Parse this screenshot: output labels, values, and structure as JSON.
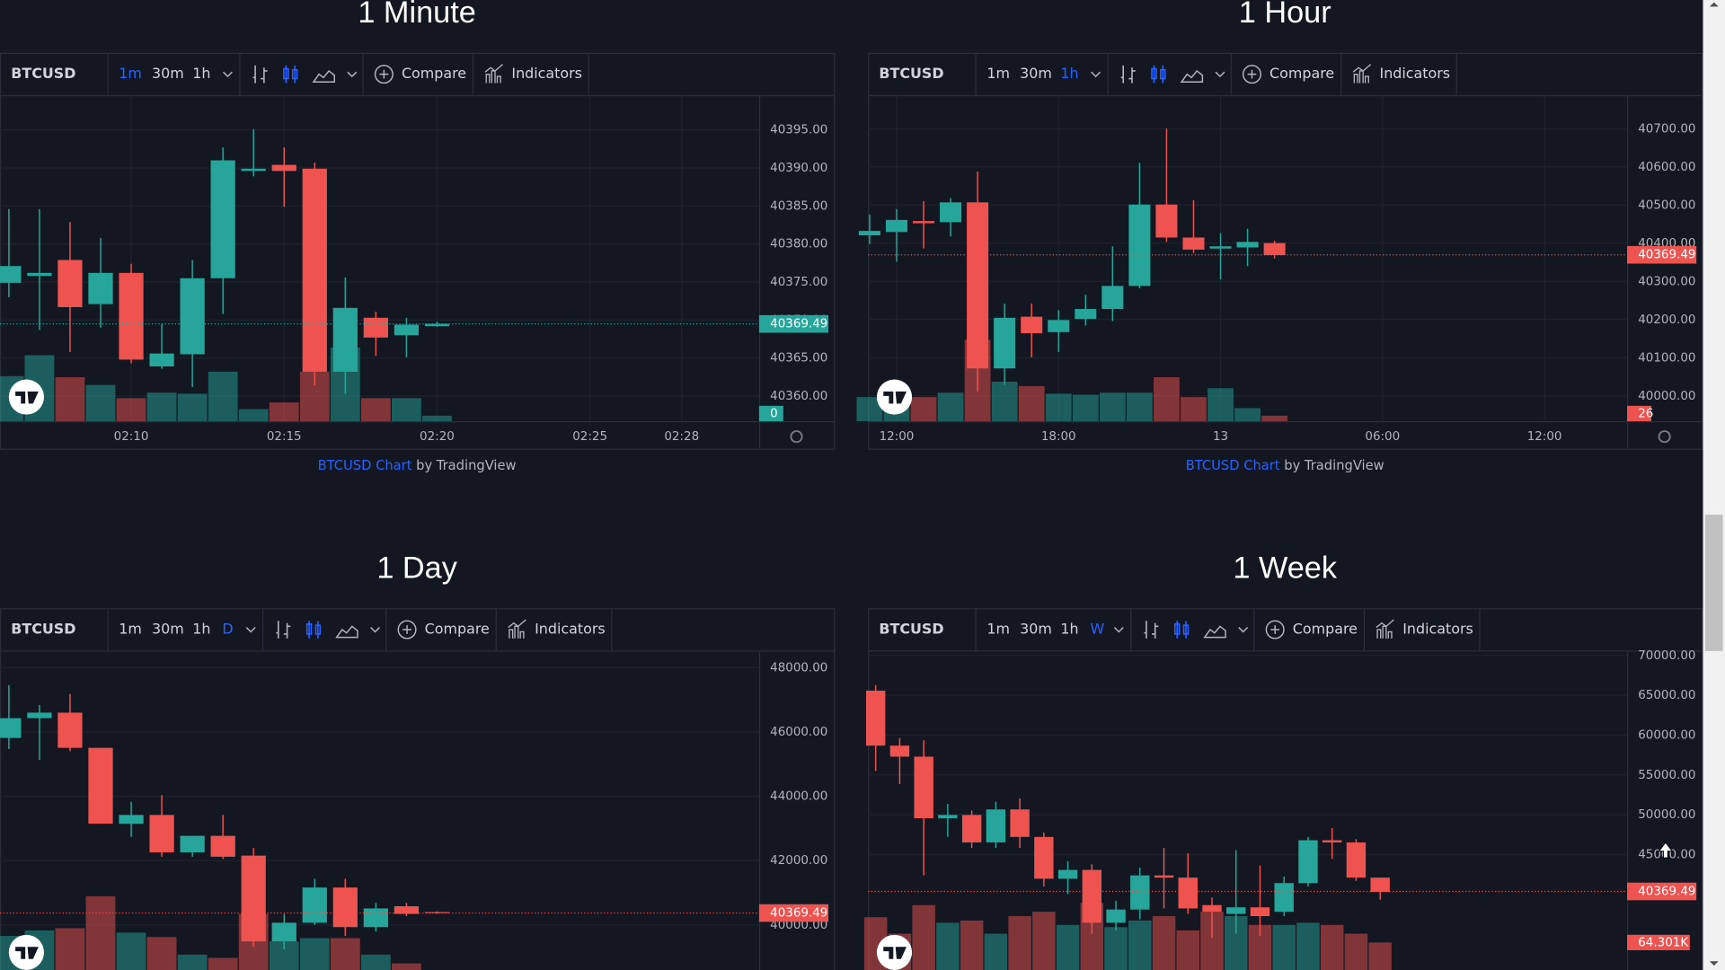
{
  "chart_data": [
    {
      "type": "candlestick",
      "title": "1 Minute",
      "toolbar": {
        "symbol": "BTCUSD",
        "intervals": [
          "1m",
          "30m",
          "1h"
        ],
        "active": 0,
        "compare": "Compare",
        "indicators": "Indicators"
      },
      "credit": {
        "link": "BTCUSD Chart",
        "text": "by TradingView"
      },
      "up_color": "#26a69a",
      "down_color": "#ef5350",
      "open": [
        40374.9,
        40375.8,
        40377.9,
        40372.1,
        40376.2,
        40363.9,
        40365.5,
        40375.5,
        40389.6,
        40390.4,
        40389.9,
        40363.2,
        40370.3,
        40368.0,
        40369.2
      ],
      "high": [
        40384.6,
        40384.6,
        40382.9,
        40380.8,
        40377.4,
        40369.5,
        40377.9,
        40392.7,
        40395.1,
        40392.7,
        40390.7,
        40375.6,
        40371.1,
        40370.3,
        40369.8
      ],
      "low": [
        40373.0,
        40368.7,
        40365.8,
        40369.0,
        40364.3,
        40363.6,
        40361.2,
        40370.8,
        40388.9,
        40384.9,
        40361.4,
        40360.3,
        40365.3,
        40365.1,
        40369.1
      ],
      "close": [
        40377.1,
        40376.2,
        40371.7,
        40376.2,
        40364.8,
        40365.6,
        40375.5,
        40391.0,
        40389.9,
        40389.6,
        40363.2,
        40371.6,
        40367.7,
        40369.4,
        40369.5
      ],
      "volume": [
        41,
        60,
        40,
        33,
        21,
        26,
        25,
        45,
        11,
        17,
        45,
        67,
        21,
        21,
        5
      ],
      "volume_lim": [
        0,
        296
      ],
      "ylim": [
        40356.7,
        40399.5
      ],
      "yticks": [
        {
          "value": 40360,
          "label": "40360.00"
        },
        {
          "value": 40365,
          "label": "40365.00"
        },
        {
          "value": 40370,
          "label": "40370.00"
        },
        {
          "value": 40375,
          "label": "40375.00"
        },
        {
          "value": 40380,
          "label": "40380.00"
        },
        {
          "value": 40385,
          "label": "40385.00"
        },
        {
          "value": 40390,
          "label": "40390.00"
        },
        {
          "value": 40395,
          "label": "40395.00"
        }
      ],
      "xlim": [
        -0.29,
        24.53
      ],
      "xticks": [
        {
          "value": 4,
          "label": "02:10"
        },
        {
          "value": 9,
          "label": "02:15"
        },
        {
          "value": 14,
          "label": "02:20"
        },
        {
          "value": 19,
          "label": "02:25"
        },
        {
          "value": 22,
          "label": "02:28"
        }
      ],
      "last_price": 40369.49,
      "last_price_color": "#26a69a",
      "last_volume": 0
    },
    {
      "type": "candlestick",
      "title": "1 Hour",
      "toolbar": {
        "symbol": "BTCUSD",
        "intervals": [
          "1m",
          "30m",
          "1h"
        ],
        "active": 2,
        "compare": "Compare",
        "indicators": "Indicators"
      },
      "credit": {
        "link": "BTCUSD Chart",
        "text": "by TradingView"
      },
      "up_color": "#26a69a",
      "down_color": "#ef5350",
      "open": [
        40420.5,
        40429.2,
        40458.0,
        40455.1,
        40507.0,
        40071.9,
        40207.4,
        40167.0,
        40201.6,
        40227.5,
        40288.0,
        40501.2,
        40414.8,
        40385.9,
        40388.9,
        40400.4
      ],
      "high": [
        40475.3,
        40489.7,
        40509.9,
        40518.5,
        40587.6,
        40241.9,
        40241.9,
        40224.6,
        40264.9,
        40391.7,
        40610.7,
        40700.0,
        40512.7,
        40426.3,
        40437.8,
        40406.1
      ],
      "low": [
        40397.5,
        40351.4,
        40386.0,
        40417.7,
        40011.4,
        40028.7,
        40100.8,
        40115.2,
        40184.3,
        40195.8,
        40282.2,
        40403.3,
        40374.4,
        40305.3,
        40339.9,
        40360.0
      ],
      "close": [
        40432.1,
        40460.9,
        40452.2,
        40507.0,
        40071.9,
        40204.5,
        40164.1,
        40198.7,
        40227.5,
        40288.0,
        40501.2,
        40414.8,
        40383.1,
        40391.7,
        40403.3,
        40368.7
      ],
      "volume": [
        114,
        114,
        114,
        135,
        385,
        187,
        166,
        130,
        125,
        135,
        135,
        208,
        114,
        156,
        62,
        26
      ],
      "volume_lim": [
        0,
        1539
      ],
      "ylim": [
        39933.6,
        40786.4
      ],
      "yticks": [
        {
          "value": 40000,
          "label": "40000.00"
        },
        {
          "value": 40100,
          "label": "40100.00"
        },
        {
          "value": 40200,
          "label": "40200.00"
        },
        {
          "value": 40300,
          "label": "40300.00"
        },
        {
          "value": 40400,
          "label": "40400.00"
        },
        {
          "value": 40500,
          "label": "40500.00"
        },
        {
          "value": 40600,
          "label": "40600.00"
        },
        {
          "value": 40700,
          "label": "40700.00"
        }
      ],
      "xlim": [
        -0.06,
        28.06
      ],
      "xticks": [
        {
          "value": 1,
          "label": "12:00"
        },
        {
          "value": 7,
          "label": "18:00"
        },
        13,
        {
          "value": 19,
          "label": "06:00"
        },
        {
          "value": 25,
          "label": "12:00"
        }
      ],
      "last_price": 40369.49,
      "last_price_color": "#ef5350",
      "last_volume": 26
    },
    {
      "type": "candlestick",
      "title": "1 Day",
      "toolbar": {
        "symbol": "BTCUSD",
        "intervals": [
          "1m",
          "30m",
          "1h",
          "D"
        ],
        "active": 3,
        "compare": "Compare",
        "indicators": "Indicators"
      },
      "up_color": "#26a69a",
      "down_color": "#ef5350",
      "open": [
        45811.8,
        46427.3,
        46598.2,
        45504.1,
        43145.0,
        43418.5,
        42256.1,
        42769.0,
        42153.5,
        39486.7,
        40068.0,
        41162.0,
        39931.2,
        40580.8,
        40400.0
      ],
      "high": [
        47452.9,
        46837.5,
        47179.4,
        45504.1,
        43828.8,
        44034.0,
        42769.0,
        43418.5,
        42392.8,
        40341.6,
        41435.5,
        41435.5,
        40683.3,
        40683.3,
        40420.0
      ],
      "low": [
        45470.0,
        45128.0,
        45401.6,
        43145.0,
        42734.7,
        42119.3,
        42119.3,
        42050.9,
        39315.7,
        39247.4,
        40000.0,
        39657.6,
        39794.4,
        40273.2,
        40350.0
      ],
      "close": [
        46427.3,
        46598.2,
        45504.1,
        43145.0,
        43418.5,
        42256.1,
        42769.0,
        42119.3,
        39486.7,
        40068.0,
        41162.0,
        39931.2,
        40512.4,
        40341.6,
        40369.0
      ],
      "volume": [
        37,
        42,
        44,
        73,
        40,
        36,
        20,
        17,
        57,
        32,
        35,
        35,
        20,
        12,
        5
      ],
      "volume_lim": [
        0,
        296
      ],
      "ylim": [
        38393,
        48513
      ],
      "yticks": [
        {
          "value": 40000,
          "label": "40000.00"
        },
        {
          "value": 42000,
          "label": "42000.00"
        },
        {
          "value": 44000,
          "label": "44000.00"
        },
        {
          "value": 46000,
          "label": "46000.00"
        },
        {
          "value": 48000,
          "label": "48000.00"
        }
      ],
      "xlim": [
        -0.29,
        24.53
      ],
      "last_price": 40369.49,
      "last_price_color": "#ef5350"
    },
    {
      "type": "candlestick",
      "title": "1 Week",
      "toolbar": {
        "symbol": "BTCUSD",
        "intervals": [
          "1m",
          "30m",
          "1h",
          "W"
        ],
        "active": 3,
        "compare": "Compare",
        "indicators": "Indicators"
      },
      "up_color": "#26a69a",
      "down_color": "#ef5350",
      "open": [
        65580.8,
        58675.8,
        57294.8,
        49561.2,
        49975.5,
        46523.0,
        50666.0,
        47213.5,
        41965.7,
        43070.5,
        36441.7,
        38098.9,
        42380.0,
        42103.8,
        38651.3,
        37546.5,
        38375.0,
        37822.7,
        41413.3,
        46799.2,
        46523.0,
        42103.8
      ],
      "high": [
        66271.3,
        59642.5,
        59366.3,
        51356.5,
        50527.9,
        51633.0,
        52047.0,
        47766.0,
        44175.0,
        43761.0,
        39203.7,
        43346.7,
        45832.5,
        45142.0,
        39618.0,
        45556.0,
        43623.0,
        42241.9,
        47213.5,
        48318.0,
        46937.0,
        42103.8
      ],
      "low": [
        55499.5,
        53842.3,
        42380.0,
        47213.5,
        45832.5,
        45832.5,
        45832.5,
        41000.0,
        40032.0,
        35060.7,
        35474.9,
        36856.0,
        38237.0,
        37546.5,
        34508.3,
        35060.7,
        34784.5,
        37270.3,
        41000.0,
        44451.5,
        41690.0,
        39342.0
      ],
      "close": [
        58675.8,
        57294.8,
        49561.2,
        49975.5,
        46523.0,
        50666.0,
        47213.5,
        41965.7,
        43070.5,
        36441.7,
        38098.9,
        42380.0,
        42103.8,
        38237.0,
        37822.7,
        38375.0,
        37270.3,
        41413.3,
        46799.2,
        46523.0,
        42103.8,
        40308.5
      ],
      "volume": [
        112000,
        80900,
        134800,
        101600,
        105800,
        80900,
        114100,
        122400,
        97500,
        139000,
        93300,
        105800,
        114100,
        87100,
        122400,
        114100,
        97500,
        97500,
        101600,
        97500,
        80900,
        64301
      ],
      "volume_lim": [
        0,
        614000
      ],
      "ylim": [
        29675,
        70552
      ],
      "yticks": [
        {
          "value": 45000,
          "label": "45000.00"
        },
        {
          "value": 50000,
          "label": "50000.00"
        },
        {
          "value": 55000,
          "label": "55000.00"
        },
        {
          "value": 60000,
          "label": "60000.00"
        },
        {
          "value": 65000,
          "label": "65000.00"
        },
        {
          "value": 70000,
          "label": "70000.00"
        }
      ],
      "xlim": [
        -0.32,
        31.28
      ],
      "last_price": 40369.49,
      "last_price_color": "#ef5350",
      "last_volume": {
        "value": 64301,
        "label": "64.301K"
      }
    }
  ]
}
